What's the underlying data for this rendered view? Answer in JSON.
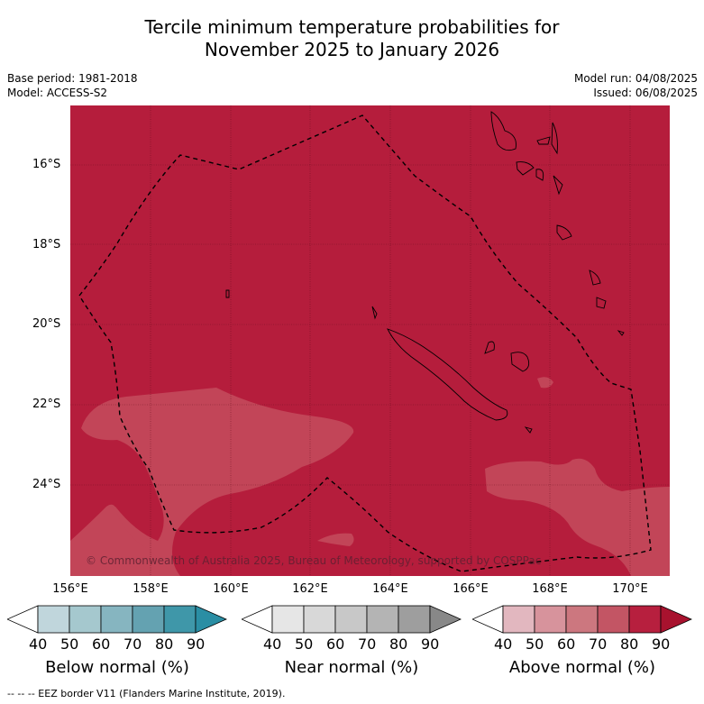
{
  "title_line1": "Tercile minimum temperature probabilities for",
  "title_line2": "November 2025 to January 2026",
  "base_period": "Base period: 1981-2018",
  "model": "Model: ACCESS-S2",
  "model_run": "Model run: 04/08/2025",
  "issued": "Issued: 06/08/2025",
  "copyright": "© Commonwealth of Australia 2025, Bureau of Meteorology, supported by COSPPac",
  "lat_labels": [
    "16°S",
    "18°S",
    "20°S",
    "22°S",
    "24°S"
  ],
  "lon_labels": [
    "156°E",
    "158°E",
    "160°E",
    "162°E",
    "164°E",
    "166°E",
    "168°E",
    "170°E"
  ],
  "colorbars": [
    {
      "title": "Below normal (%)",
      "ticks": [
        "40",
        "50",
        "60",
        "70",
        "80",
        "90"
      ],
      "colors": [
        "#c0d6dc",
        "#a5c8ce",
        "#86b5c0",
        "#64a2b1",
        "#3f97a9",
        "#2a8ea4"
      ]
    },
    {
      "title": "Near normal (%)",
      "ticks": [
        "40",
        "50",
        "60",
        "70",
        "80",
        "90"
      ],
      "colors": [
        "#e6e6e6",
        "#d8d8d8",
        "#c8c8c8",
        "#b4b4b4",
        "#9e9e9e",
        "#888888"
      ]
    },
    {
      "title": "Above normal (%)",
      "ticks": [
        "40",
        "50",
        "60",
        "70",
        "80",
        "90"
      ],
      "colors": [
        "#e2b7bf",
        "#d7939c",
        "#cc777f",
        "#c35564",
        "#b71f3e",
        "#a8122e"
      ]
    }
  ],
  "map_colors": {
    "above_80": "#b51d3c",
    "above_70": "#c24558"
  },
  "legend_note": "-- -- -- EEZ border V11 (Flanders Marine Institute, 2019)."
}
